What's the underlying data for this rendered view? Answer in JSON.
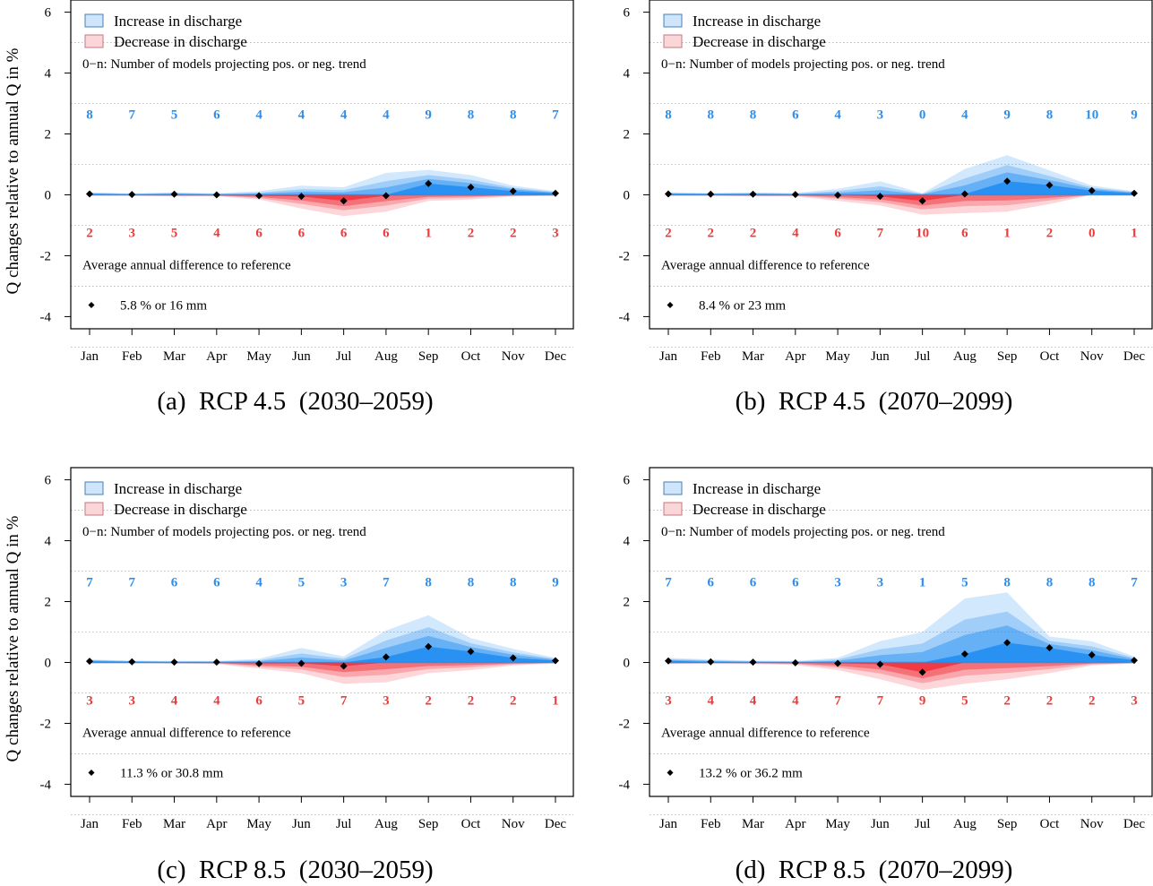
{
  "figure": {
    "ylabel": "Q changes relative to annual Q in %",
    "legend": {
      "increase": "Increase in discharge",
      "decrease": "Decrease in discharge",
      "note": "0−n: Number of models projecting pos. or neg. trend"
    },
    "avg_label": "Average annual difference to reference",
    "colors": {
      "blue_band": "#1f8cf0",
      "red_band": "#f0303a",
      "count_pos": "#2a8ef0",
      "count_neg": "#f03a3a",
      "legend_blue_fill": "#cfe5fb",
      "legend_red_fill": "#fbd6d8",
      "marker": "#000000"
    }
  },
  "chart_data": [
    {
      "panel": "a",
      "caption": "(a)  RCP 4.5  (2030–2059)",
      "type": "area",
      "categories": [
        "Jan",
        "Feb",
        "Mar",
        "Apr",
        "May",
        "Jun",
        "Jul",
        "Aug",
        "Sep",
        "Oct",
        "Nov",
        "Dec"
      ],
      "ylim": [
        -4.4,
        6.4
      ],
      "yticks": [
        -4,
        -2,
        0,
        2,
        4,
        6
      ],
      "grid": true,
      "mean": [
        0.03,
        0.01,
        0.02,
        0.0,
        -0.03,
        -0.05,
        -0.2,
        -0.03,
        0.37,
        0.25,
        0.12,
        0.05
      ],
      "pos_count": [
        8,
        7,
        5,
        6,
        4,
        4,
        4,
        4,
        9,
        8,
        8,
        7
      ],
      "neg_count": [
        2,
        3,
        5,
        4,
        6,
        6,
        6,
        6,
        1,
        2,
        2,
        3
      ],
      "upper_max": [
        0.08,
        0.05,
        0.08,
        0.05,
        0.12,
        0.3,
        0.25,
        0.72,
        0.82,
        0.65,
        0.3,
        0.12
      ],
      "lower_min": [
        -0.03,
        -0.03,
        -0.05,
        -0.05,
        -0.15,
        -0.45,
        -0.7,
        -0.55,
        -0.2,
        -0.15,
        -0.05,
        -0.03
      ],
      "avg_value": "5.8 % or 16 mm"
    },
    {
      "panel": "b",
      "caption": "(b)  RCP 4.5  (2070–2099)",
      "type": "area",
      "categories": [
        "Jan",
        "Feb",
        "Mar",
        "Apr",
        "May",
        "Jun",
        "Jul",
        "Aug",
        "Sep",
        "Oct",
        "Nov",
        "Dec"
      ],
      "ylim": [
        -4.4,
        6.4
      ],
      "yticks": [
        -4,
        -2,
        0,
        2,
        4,
        6
      ],
      "grid": true,
      "mean": [
        0.03,
        0.02,
        0.02,
        0.01,
        -0.01,
        -0.05,
        -0.2,
        0.03,
        0.45,
        0.32,
        0.14,
        0.05
      ],
      "pos_count": [
        8,
        8,
        8,
        6,
        4,
        3,
        0,
        4,
        9,
        8,
        10,
        9
      ],
      "neg_count": [
        2,
        2,
        2,
        4,
        6,
        7,
        10,
        6,
        1,
        2,
        0,
        1
      ],
      "upper_max": [
        0.08,
        0.06,
        0.08,
        0.06,
        0.2,
        0.45,
        0.05,
        0.85,
        1.3,
        0.8,
        0.3,
        0.12
      ],
      "lower_min": [
        -0.03,
        -0.03,
        -0.05,
        -0.05,
        -0.2,
        -0.35,
        -0.65,
        -0.6,
        -0.55,
        -0.3,
        0.0,
        -0.02
      ],
      "avg_value": "8.4 % or 23 mm"
    },
    {
      "panel": "c",
      "caption": "(c)  RCP 8.5  (2030–2059)",
      "type": "area",
      "categories": [
        "Jan",
        "Feb",
        "Mar",
        "Apr",
        "May",
        "Jun",
        "Jul",
        "Aug",
        "Sep",
        "Oct",
        "Nov",
        "Dec"
      ],
      "ylim": [
        -4.4,
        6.4
      ],
      "yticks": [
        -4,
        -2,
        0,
        2,
        4,
        6
      ],
      "grid": true,
      "mean": [
        0.04,
        0.02,
        0.01,
        0.01,
        -0.04,
        -0.03,
        -0.12,
        0.18,
        0.52,
        0.36,
        0.15,
        0.06
      ],
      "pos_count": [
        7,
        7,
        6,
        6,
        4,
        5,
        3,
        7,
        8,
        8,
        8,
        9
      ],
      "neg_count": [
        3,
        3,
        4,
        4,
        6,
        5,
        7,
        3,
        2,
        2,
        2,
        1
      ],
      "upper_max": [
        0.1,
        0.06,
        0.05,
        0.05,
        0.12,
        0.48,
        0.2,
        1.05,
        1.55,
        0.8,
        0.45,
        0.15
      ],
      "lower_min": [
        -0.03,
        -0.03,
        -0.04,
        -0.05,
        -0.2,
        -0.35,
        -0.7,
        -0.65,
        -0.35,
        -0.25,
        -0.1,
        -0.03
      ],
      "avg_value": "11.3 % or 30.8 mm"
    },
    {
      "panel": "d",
      "caption": "(d)  RCP 8.5  (2070–2099)",
      "type": "area",
      "categories": [
        "Jan",
        "Feb",
        "Mar",
        "Apr",
        "May",
        "Jun",
        "Jul",
        "Aug",
        "Sep",
        "Oct",
        "Nov",
        "Dec"
      ],
      "ylim": [
        -4.4,
        6.4
      ],
      "yticks": [
        -4,
        -2,
        0,
        2,
        4,
        6
      ],
      "grid": true,
      "mean": [
        0.05,
        0.02,
        0.01,
        -0.01,
        -0.03,
        -0.06,
        -0.32,
        0.28,
        0.65,
        0.48,
        0.25,
        0.07
      ],
      "pos_count": [
        7,
        6,
        6,
        6,
        3,
        3,
        1,
        5,
        8,
        8,
        8,
        7
      ],
      "neg_count": [
        3,
        4,
        4,
        4,
        7,
        7,
        9,
        5,
        2,
        2,
        2,
        3
      ],
      "upper_max": [
        0.15,
        0.1,
        0.06,
        0.05,
        0.15,
        0.7,
        1.0,
        2.1,
        2.3,
        0.85,
        0.7,
        0.2
      ],
      "lower_min": [
        -0.05,
        -0.04,
        -0.05,
        -0.08,
        -0.25,
        -0.55,
        -0.9,
        -0.7,
        -0.55,
        -0.35,
        -0.1,
        -0.03
      ],
      "avg_value": "13.2 % or 36.2 mm"
    }
  ]
}
